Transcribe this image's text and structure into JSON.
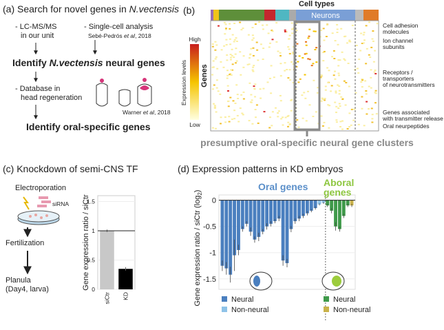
{
  "panel_a": {
    "label": "(a)",
    "title": "Search for novel genes in ",
    "species": "N.vectensis",
    "source1": [
      "- LC-MS/MS",
      "in our unit"
    ],
    "source2": "- Single-cell analysis",
    "ref1_author": "Sebé-Pedrós ",
    "ref1_etal": "et al",
    "ref1_year": ", 2018",
    "step1_pre": "Identify ",
    "step1_species": "N.vectensis",
    "step1_post": " neural genes",
    "source3": [
      "- Database in",
      "head regeneration"
    ],
    "ref2_author": "Warner ",
    "ref2_etal": "et al",
    "ref2_year": ", 2018",
    "step2": "Identify oral-specific genes"
  },
  "panel_b": {
    "label": "(b)",
    "cell_types": "Cell types",
    "neurons": "Neurons",
    "colorbar_high": "High",
    "colorbar_low": "Low",
    "colorbar_title": "Expression levels",
    "y_label": "Genes",
    "gene_groups": [
      [
        "Cell adhesion",
        "molecules"
      ],
      [
        "Ion channel",
        "subunits"
      ],
      [
        "Receptors /",
        "transporters",
        "of neurotransmitters"
      ],
      [
        "Genes associated",
        "with transmitter release"
      ],
      [
        "Oral neurpeptides"
      ]
    ],
    "caption": "presumptive oral-specific neural gene clusters"
  },
  "panel_c": {
    "label": "(c)",
    "title": "Knockdown of semi-CNS TF",
    "steps": [
      "Electroporation",
      "Fertilization",
      "Planula",
      "(Day4, larva)"
    ],
    "reagent": "siRNA",
    "chart": {
      "type": "bar",
      "y_label": "Gene expression ratio / siCtr",
      "categories": [
        "siCtr",
        "KD"
      ],
      "values": [
        1,
        0.35
      ],
      "errors": [
        0.02,
        0.03
      ],
      "colors": [
        "#c8c8c8",
        "#000000"
      ],
      "ylim": [
        0,
        1.6
      ],
      "yticks": [
        0,
        0.5,
        1,
        1.5
      ]
    }
  },
  "panel_d": {
    "label": "(d)",
    "title": "Expression patterns in KD embryos",
    "group_labels": [
      "Oral genes",
      [
        "Aboral",
        "genes"
      ]
    ],
    "chart": {
      "type": "bar",
      "y_label": "Gene expression ratio / siCtr (log",
      "y_label_sub": "2",
      "y_label_end": ")",
      "ylim": [
        -1.7,
        0.1
      ],
      "yticks": [
        0,
        -0.5,
        -1,
        -1.5
      ],
      "grid": true,
      "series": [
        {
          "name": "Neural",
          "color": "#4a7fbf",
          "values": [
            -1.25,
            -1.3,
            -1.42,
            -1.05,
            -0.95,
            -0.55,
            -0.45,
            -0.6,
            -0.75,
            -0.7,
            -0.6,
            -0.5,
            -0.45,
            -0.4,
            -0.35,
            -1.15,
            -1.2,
            -0.55,
            -0.4,
            -0.35,
            -0.3,
            -0.25,
            -0.2,
            -0.15
          ],
          "errors": [
            0.1,
            0.12,
            0.15,
            0.3,
            0.1,
            0.05,
            0.05,
            0.08,
            0.06,
            0.08,
            0.05,
            0.06,
            0.05,
            0.04,
            0.05,
            0.1,
            0.08,
            0.06,
            0.05,
            0.05,
            0.04,
            0.04,
            0.03,
            0.03
          ]
        },
        {
          "name": "Non-neural",
          "color": "#8fc3e8",
          "values": [
            -0.08,
            -0.05
          ],
          "errors": [
            0.02,
            0.02
          ]
        },
        {
          "name": "Neural",
          "color": "#3f9a4a",
          "values": [
            -0.1,
            -0.2,
            -0.5,
            -0.55,
            -0.3,
            -0.1
          ],
          "errors": [
            0.03,
            0.05,
            0.08,
            0.05,
            0.04,
            0.03
          ]
        },
        {
          "name": "Non-neural",
          "color": "#c9b24a",
          "values": [
            -0.1
          ],
          "errors": [
            0.03
          ]
        }
      ]
    }
  }
}
